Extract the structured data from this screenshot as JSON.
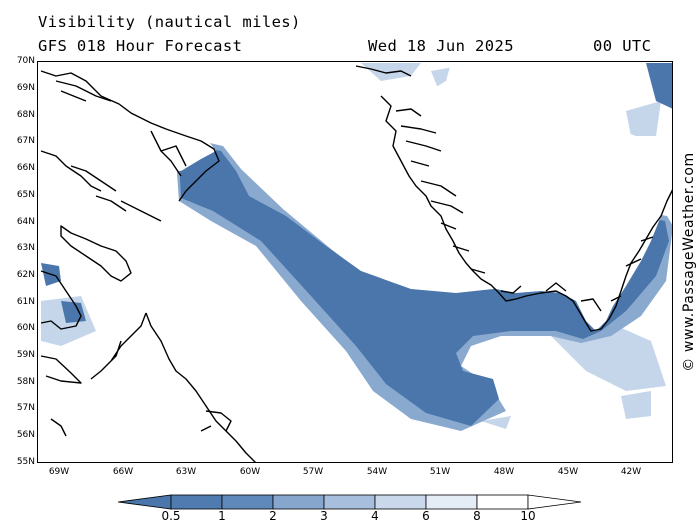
{
  "header": {
    "title": "Visibility (nautical miles)",
    "subtitle": "GFS 018 Hour Forecast",
    "date": "Wed 18 Jun 2025",
    "time": "00 UTC"
  },
  "map": {
    "lat_labels": [
      "70N",
      "69N",
      "68N",
      "67N",
      "66N",
      "65N",
      "64N",
      "63N",
      "62N",
      "61N",
      "60N",
      "59N",
      "58N",
      "57N",
      "56N",
      "55N"
    ],
    "lon_labels": [
      "69W",
      "66W",
      "63W",
      "60W",
      "57W",
      "54W",
      "51W",
      "48W",
      "45W",
      "42W"
    ],
    "copyright": "© www.PassageWeather.com",
    "colors": {
      "dense": "#4a76ab",
      "mid": "#8aa9cf",
      "light": "#c5d6ea",
      "coast": "#000000"
    }
  },
  "legend": {
    "labels": [
      "0.5",
      "1",
      "2",
      "3",
      "4",
      "6",
      "8",
      "10"
    ],
    "colors": [
      "#4a76ab",
      "#4f7bb0",
      "#5f88bb",
      "#86a6cd",
      "#a7bfdc",
      "#c9d8eb",
      "#e4ecf6",
      "#ffffff"
    ]
  }
}
